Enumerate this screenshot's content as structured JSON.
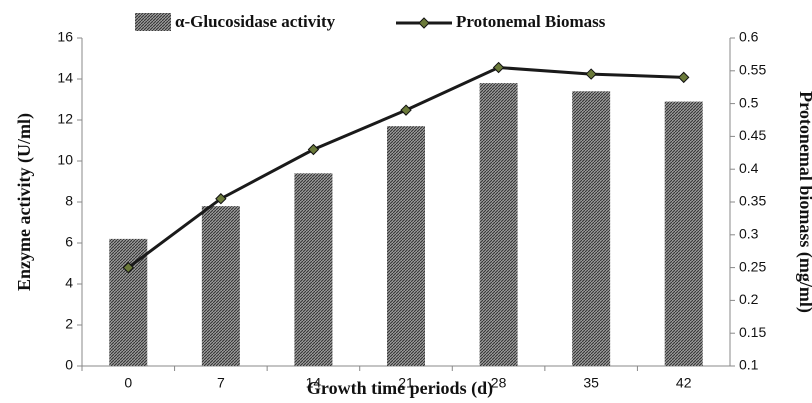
{
  "chart_data": {
    "type": "bar-line",
    "xlabel": "Growth time periods (d)",
    "ylabel": "Enzyme activity (U/ml)",
    "y2label": "Protonemal biomass (mg/ml)",
    "categories": [
      "0",
      "7",
      "14",
      "21",
      "28",
      "35",
      "42"
    ],
    "series": [
      {
        "name": "α-Glucosidase activity",
        "type": "bar",
        "color": "#8c8c8c",
        "values": [
          6.2,
          7.8,
          9.4,
          11.7,
          13.8,
          13.4,
          12.9
        ]
      },
      {
        "name": "Protonemal Biomass",
        "type": "line",
        "axis": "y2",
        "color": "#1a1a1a",
        "marker_color": "#6b7a3a",
        "values": [
          0.25,
          0.355,
          0.43,
          0.49,
          0.555,
          0.545,
          0.54
        ]
      }
    ],
    "ylim": [
      0,
      16
    ],
    "yticks": [
      0,
      2,
      4,
      6,
      8,
      10,
      12,
      14,
      16
    ],
    "y2lim": [
      0.1,
      0.6
    ],
    "y2ticks": [
      0.1,
      0.15,
      0.2,
      0.25,
      0.3,
      0.35,
      0.4,
      0.45,
      0.5,
      0.55,
      0.6
    ]
  }
}
